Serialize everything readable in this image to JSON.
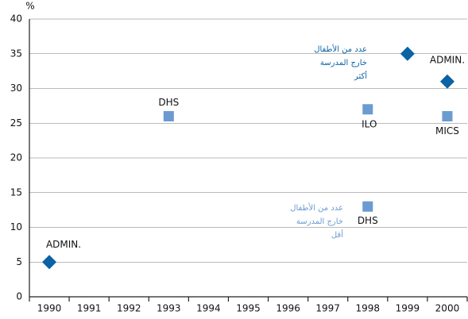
{
  "chart_data": {
    "type": "scatter",
    "y_unit": "%",
    "xlim": [
      1989.5,
      2000.5
    ],
    "xticks": [
      1990,
      1991,
      1992,
      1993,
      1994,
      1995,
      1996,
      1997,
      1998,
      1999,
      2000
    ],
    "ylim": [
      0,
      40
    ],
    "yticks": [
      0,
      5,
      10,
      15,
      20,
      25,
      30,
      35,
      40
    ],
    "grid": true,
    "series": [
      {
        "marker": "diamond",
        "color": "#0b62a4",
        "x": [
          1990,
          1999,
          2000
        ],
        "values": [
          5,
          35,
          31
        ],
        "labels": [
          "ADMIN.",
          null,
          "ADMIN."
        ]
      },
      {
        "marker": "square",
        "color": "#6b9bd1",
        "x": [
          1993,
          1998,
          1998,
          2000
        ],
        "values": [
          26,
          27,
          13,
          26
        ],
        "labels": [
          "DHS",
          "ILO",
          "DHS",
          "MICS"
        ]
      }
    ],
    "annotations": [
      {
        "lines": [
          "عدد من الأطفال",
          "خارج المدرسة",
          "أكثر"
        ],
        "color": "#0b62a4"
      },
      {
        "lines": [
          "عدد من الأطفال",
          "خارج المدرسة",
          "أقل"
        ],
        "color": "#6b9bd1"
      }
    ]
  }
}
